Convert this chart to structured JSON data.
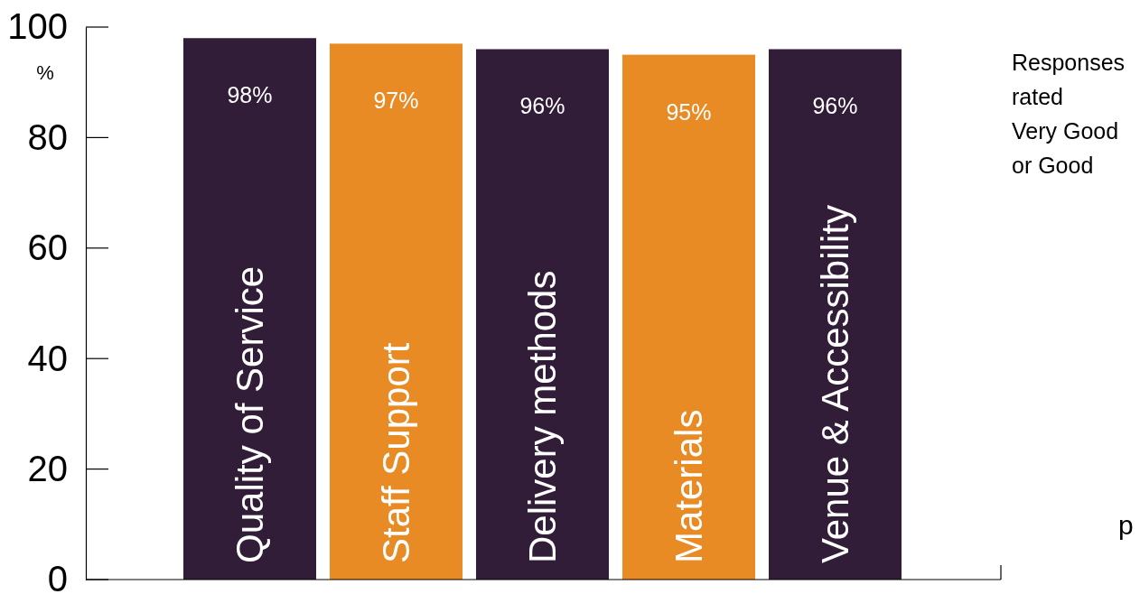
{
  "chart_data": {
    "type": "bar",
    "ylabel": "%",
    "categories": [
      "Quality of Service",
      "Staff Support",
      "Delivery methods",
      "Materials",
      "Venue & Accessibility"
    ],
    "values": [
      98,
      97,
      96,
      95,
      96
    ],
    "colors": [
      "#321d38",
      "#e88b25",
      "#321d38",
      "#e88b25",
      "#321d38"
    ],
    "value_labels": [
      "98%",
      "97%",
      "96%",
      "95%",
      "96%"
    ],
    "ylim": [
      0,
      100
    ],
    "yticks": [
      0,
      20,
      40,
      60,
      80,
      100
    ],
    "grid": false,
    "annotations": [
      "Responses\nrated\nVery Good\nor Good",
      "p"
    ]
  }
}
